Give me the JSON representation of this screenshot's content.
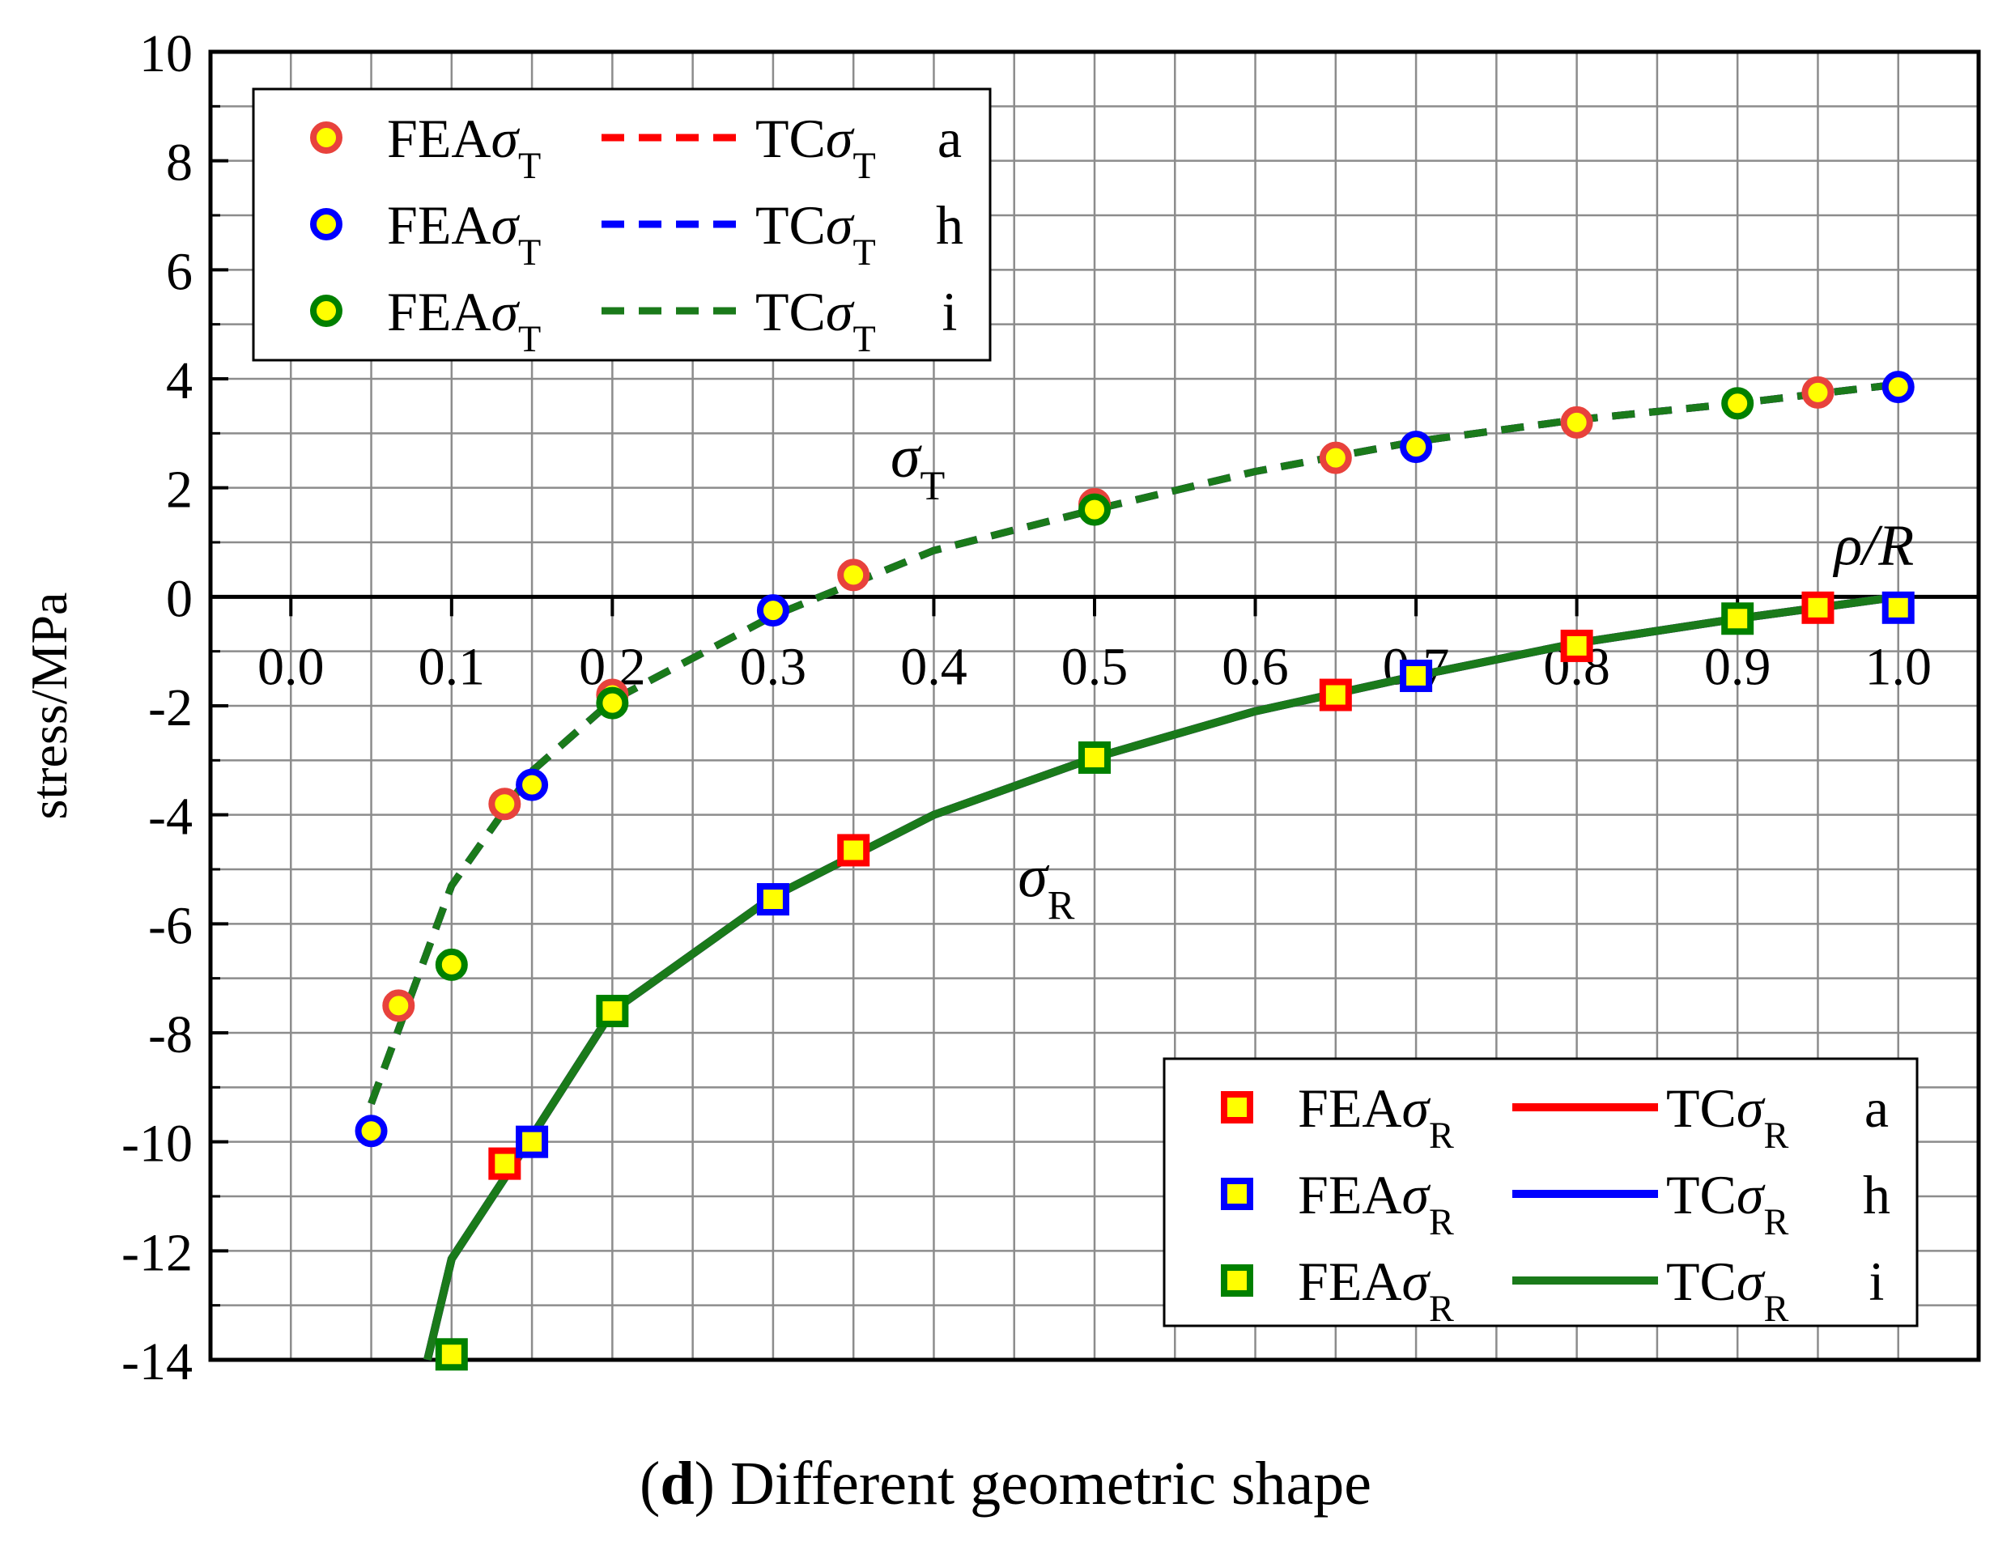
{
  "chart_data": {
    "type": "line",
    "xlabel": "ρ/R",
    "ylabel": "stress/MPa",
    "xlim": [
      -0.05,
      1.05
    ],
    "ylim": [
      -14,
      10
    ],
    "xticks": [
      0.0,
      0.1,
      0.2,
      0.3,
      0.4,
      0.5,
      0.6,
      0.7,
      0.8,
      0.9,
      1.0
    ],
    "xtick_labels": [
      "0.0",
      "0.1",
      "0.2",
      "0.3",
      "0.4",
      "0.5",
      "0.6",
      "0.7",
      "0.8",
      "0.9",
      "1.0"
    ],
    "yticks": [
      -14,
      -12,
      -10,
      -8,
      -6,
      -4,
      -2,
      0,
      2,
      4,
      6,
      8,
      10
    ],
    "ytick_labels": [
      "-14",
      "-12",
      "-10",
      "-8",
      "-6",
      "-4",
      "-2",
      "0",
      "2",
      "4",
      "6",
      "8",
      "10"
    ],
    "grid": true,
    "annotations": [
      {
        "text": "σ",
        "sub": "T",
        "x": 0.39,
        "y": 2.2
      },
      {
        "text": "σ",
        "sub": "R",
        "x": 0.47,
        "y": -5.5
      }
    ],
    "series": [
      {
        "name": "FEAσT a",
        "kind": "scatter",
        "marker": "circle",
        "edge": "#e8423c",
        "fill": "#ffff00",
        "x": [
          0.067,
          0.133,
          0.2,
          0.35,
          0.5,
          0.65,
          0.8,
          0.95
        ],
        "y": [
          -7.5,
          -3.8,
          -1.8,
          0.4,
          1.7,
          2.55,
          3.2,
          3.75
        ]
      },
      {
        "name": "FEAσT h",
        "kind": "scatter",
        "marker": "circle",
        "edge": "#0000ff",
        "fill": "#ffff00",
        "x": [
          0.05,
          0.15,
          0.3,
          0.7,
          1.0
        ],
        "y": [
          -9.8,
          -3.45,
          -0.25,
          2.75,
          3.85
        ]
      },
      {
        "name": "FEAσT i",
        "kind": "scatter",
        "marker": "circle",
        "edge": "#008000",
        "fill": "#ffff00",
        "x": [
          0.1,
          0.2,
          0.5,
          0.9
        ],
        "y": [
          -6.75,
          -1.95,
          1.6,
          3.55
        ]
      },
      {
        "name": "TCσT a",
        "kind": "line",
        "dash": true,
        "color": "#ff0000",
        "x": [
          0.05,
          0.1,
          0.15,
          0.2,
          0.3,
          0.4,
          0.5,
          0.6,
          0.7,
          0.8,
          0.9,
          1.0
        ],
        "y": [
          -9.3,
          -5.3,
          -3.2,
          -1.9,
          -0.35,
          0.85,
          1.6,
          2.3,
          2.85,
          3.25,
          3.55,
          3.9
        ]
      },
      {
        "name": "TCσT h",
        "kind": "line",
        "dash": true,
        "color": "#0000ff",
        "x": [
          0.05,
          0.1,
          0.15,
          0.2,
          0.3,
          0.4,
          0.5,
          0.6,
          0.7,
          0.8,
          0.9,
          1.0
        ],
        "y": [
          -9.3,
          -5.3,
          -3.2,
          -1.9,
          -0.35,
          0.85,
          1.6,
          2.3,
          2.85,
          3.25,
          3.55,
          3.9
        ]
      },
      {
        "name": "TCσT i",
        "kind": "line",
        "dash": true,
        "color": "#1a7a1a",
        "x": [
          0.05,
          0.1,
          0.15,
          0.2,
          0.3,
          0.4,
          0.5,
          0.6,
          0.7,
          0.8,
          0.9,
          1.0
        ],
        "y": [
          -9.3,
          -5.3,
          -3.2,
          -1.9,
          -0.35,
          0.85,
          1.6,
          2.3,
          2.85,
          3.25,
          3.55,
          3.9
        ]
      },
      {
        "name": "FEAσR a",
        "kind": "scatter",
        "marker": "square",
        "edge": "#ff0000",
        "fill": "#ffff00",
        "x": [
          0.133,
          0.35,
          0.65,
          0.8,
          0.95
        ],
        "y": [
          -10.4,
          -4.65,
          -1.8,
          -0.9,
          -0.2
        ]
      },
      {
        "name": "FEAσR h",
        "kind": "scatter",
        "marker": "square",
        "edge": "#0000ff",
        "fill": "#ffff00",
        "x": [
          0.15,
          0.3,
          0.7,
          1.0
        ],
        "y": [
          -10.0,
          -5.55,
          -1.45,
          -0.2
        ]
      },
      {
        "name": "FEAσR i",
        "kind": "scatter",
        "marker": "square",
        "edge": "#008000",
        "fill": "#ffff00",
        "x": [
          0.1,
          0.2,
          0.5,
          0.9
        ],
        "y": [
          -13.9,
          -7.6,
          -2.95,
          -0.4
        ]
      },
      {
        "name": "TCσR a",
        "kind": "line",
        "dash": false,
        "color": "#ff0000",
        "x": [
          0.085,
          0.1,
          0.15,
          0.2,
          0.3,
          0.4,
          0.5,
          0.6,
          0.7,
          0.8,
          0.9,
          1.0
        ],
        "y": [
          -14.0,
          -12.15,
          -9.9,
          -7.6,
          -5.5,
          -4.0,
          -2.95,
          -2.1,
          -1.45,
          -0.85,
          -0.4,
          0.0
        ]
      },
      {
        "name": "TCσR h",
        "kind": "line",
        "dash": false,
        "color": "#0000ff",
        "x": [
          0.085,
          0.1,
          0.15,
          0.2,
          0.3,
          0.4,
          0.5,
          0.6,
          0.7,
          0.8,
          0.9,
          1.0
        ],
        "y": [
          -14.0,
          -12.15,
          -9.9,
          -7.6,
          -5.5,
          -4.0,
          -2.95,
          -2.1,
          -1.45,
          -0.85,
          -0.4,
          0.0
        ]
      },
      {
        "name": "TCσR i",
        "kind": "line",
        "dash": false,
        "color": "#1a7a1a",
        "x": [
          0.085,
          0.1,
          0.15,
          0.2,
          0.3,
          0.4,
          0.5,
          0.6,
          0.7,
          0.8,
          0.9,
          1.0
        ],
        "y": [
          -14.0,
          -12.15,
          -9.9,
          -7.6,
          -5.5,
          -4.0,
          -2.95,
          -2.1,
          -1.45,
          -0.85,
          -0.4,
          0.0
        ]
      }
    ],
    "legends": [
      {
        "placement": "top-left",
        "rows": [
          {
            "fea": "FEAσT a",
            "tc": "TCσT a",
            "fea_text": "FEA",
            "tc_text": "TC",
            "sym": "σ",
            "sub": "T",
            "label": "a"
          },
          {
            "fea": "FEAσT h",
            "tc": "TCσT h",
            "fea_text": "FEA",
            "tc_text": "TC",
            "sym": "σ",
            "sub": "T",
            "label": "h"
          },
          {
            "fea": "FEAσT i",
            "tc": "TCσT i",
            "fea_text": "FEA",
            "tc_text": "TC",
            "sym": "σ",
            "sub": "T",
            "label": "i"
          }
        ]
      },
      {
        "placement": "bottom-right",
        "rows": [
          {
            "fea": "FEAσR a",
            "tc": "TCσR a",
            "fea_text": "FEA",
            "tc_text": "TC",
            "sym": "σ",
            "sub": "R",
            "label": "a"
          },
          {
            "fea": "FEAσR h",
            "tc": "TCσR h",
            "fea_text": "FEA",
            "tc_text": "TC",
            "sym": "σ",
            "sub": "R",
            "label": "h"
          },
          {
            "fea": "FEAσR i",
            "tc": "TCσR i",
            "fea_text": "FEA",
            "tc_text": "TC",
            "sym": "σ",
            "sub": "R",
            "label": "i"
          }
        ]
      }
    ]
  },
  "caption": {
    "letter": "d",
    "text": " Different geometric shape"
  }
}
